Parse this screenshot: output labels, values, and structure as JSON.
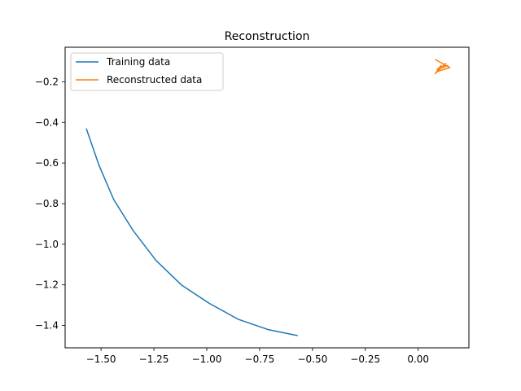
{
  "chart_data": {
    "type": "line",
    "title": "Reconstruction",
    "xlabel": "",
    "ylabel": "",
    "xlim": [
      -1.67,
      0.24
    ],
    "ylim": [
      -1.51,
      -0.03
    ],
    "xticks": [
      -1.5,
      -1.25,
      -1.0,
      -0.75,
      -0.5,
      -0.25,
      0.0
    ],
    "xtick_labels": [
      "−1.50",
      "−1.25",
      "−1.00",
      "−0.75",
      "−0.50",
      "−0.25",
      "0.00"
    ],
    "yticks": [
      -0.2,
      -0.4,
      -0.6,
      -0.8,
      -1.0,
      -1.2,
      -1.4
    ],
    "ytick_labels": [
      "−0.2",
      "−0.4",
      "−0.6",
      "−0.8",
      "−1.0",
      "−1.2",
      "−1.4"
    ],
    "grid": false,
    "legend_position": "top-left",
    "series": [
      {
        "name": "Training data",
        "color": "#1f77b4",
        "x": [
          -1.57,
          -1.51,
          -1.44,
          -1.35,
          -1.24,
          -1.12,
          -0.99,
          -0.85,
          -0.71,
          -0.57
        ],
        "y": [
          -0.43,
          -0.61,
          -0.78,
          -0.93,
          -1.08,
          -1.2,
          -1.29,
          -1.37,
          -1.42,
          -1.45
        ]
      },
      {
        "name": "Reconstructed data",
        "color": "#ff7f0e",
        "x": [
          0.08,
          0.15,
          0.09,
          0.13,
          0.08,
          0.11,
          0.09,
          0.14,
          0.1,
          0.12
        ],
        "y": [
          -0.09,
          -0.13,
          -0.15,
          -0.11,
          -0.16,
          -0.12,
          -0.14,
          -0.12,
          -0.13,
          -0.13
        ]
      }
    ]
  }
}
